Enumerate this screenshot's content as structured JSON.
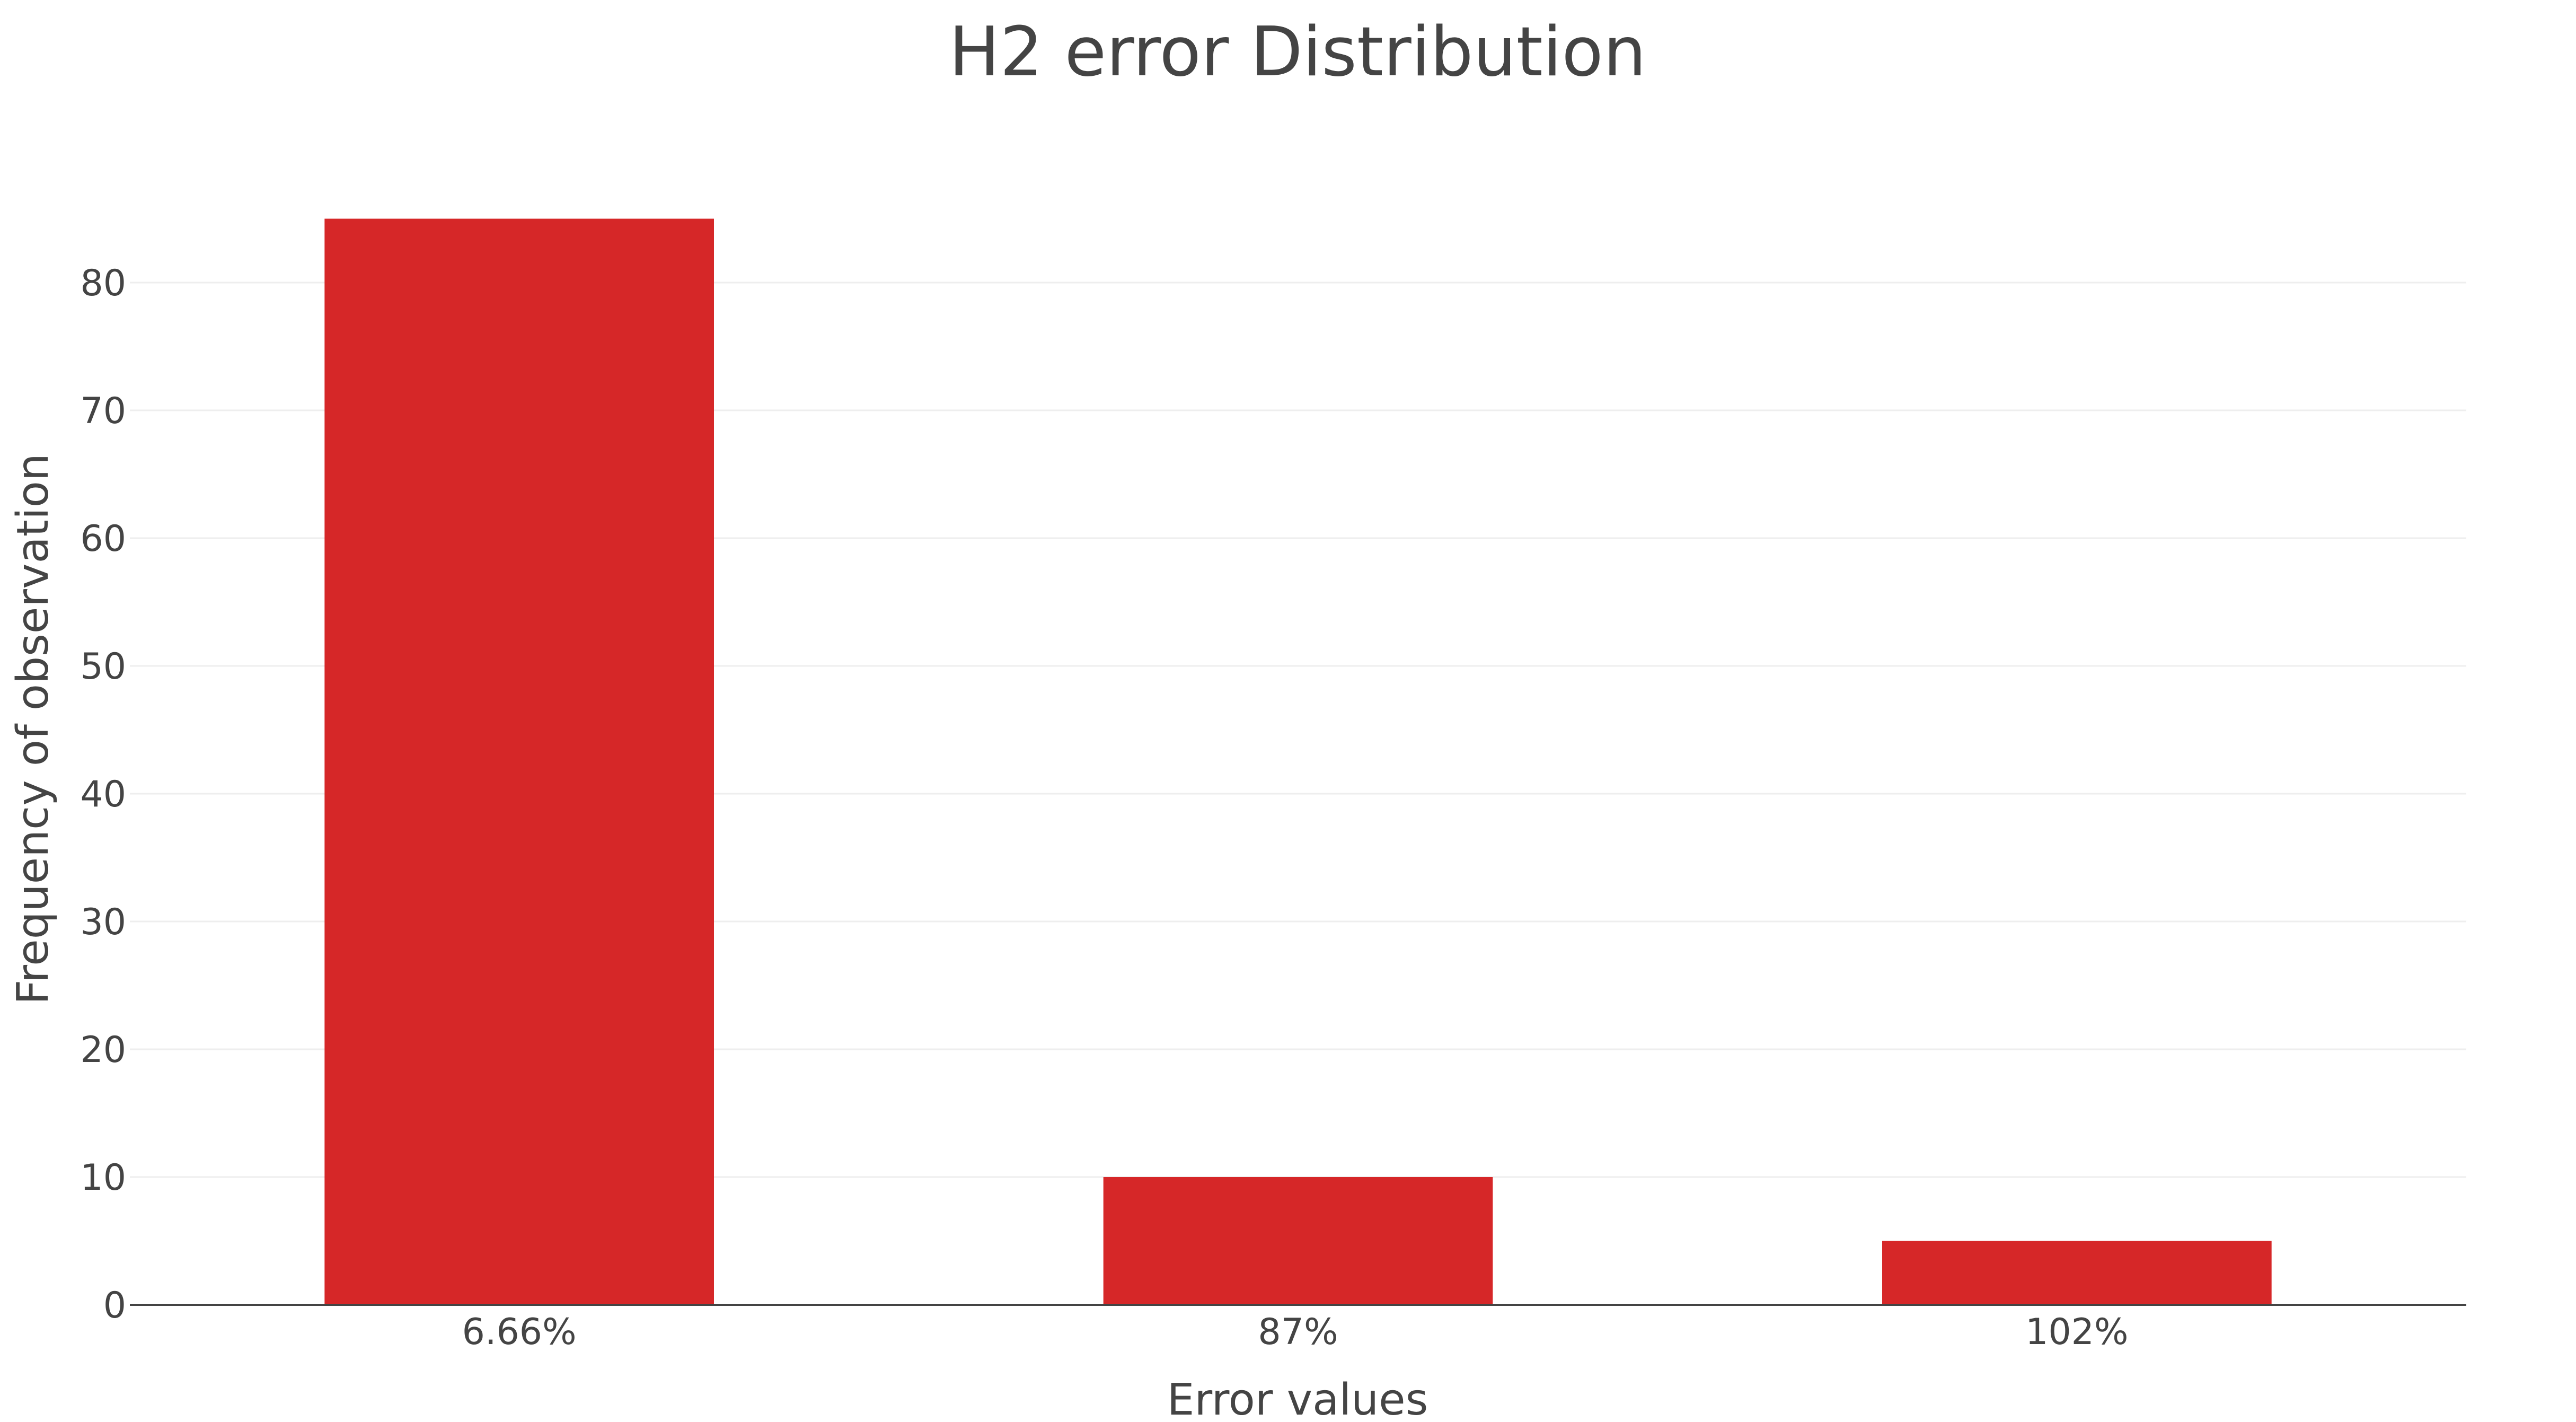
{
  "chart_data": {
    "type": "bar",
    "title": "H2 error Distribution",
    "xlabel": "Error values",
    "ylabel": "Frequency of observation",
    "categories": [
      "6.66%",
      "87%",
      "102%"
    ],
    "values": [
      85,
      10,
      5
    ],
    "ylim": [
      0,
      85
    ],
    "yticks": [
      0,
      10,
      20,
      30,
      40,
      50,
      60,
      70,
      80
    ],
    "grid": true,
    "legend": "none",
    "bar_color": "#d62728"
  }
}
